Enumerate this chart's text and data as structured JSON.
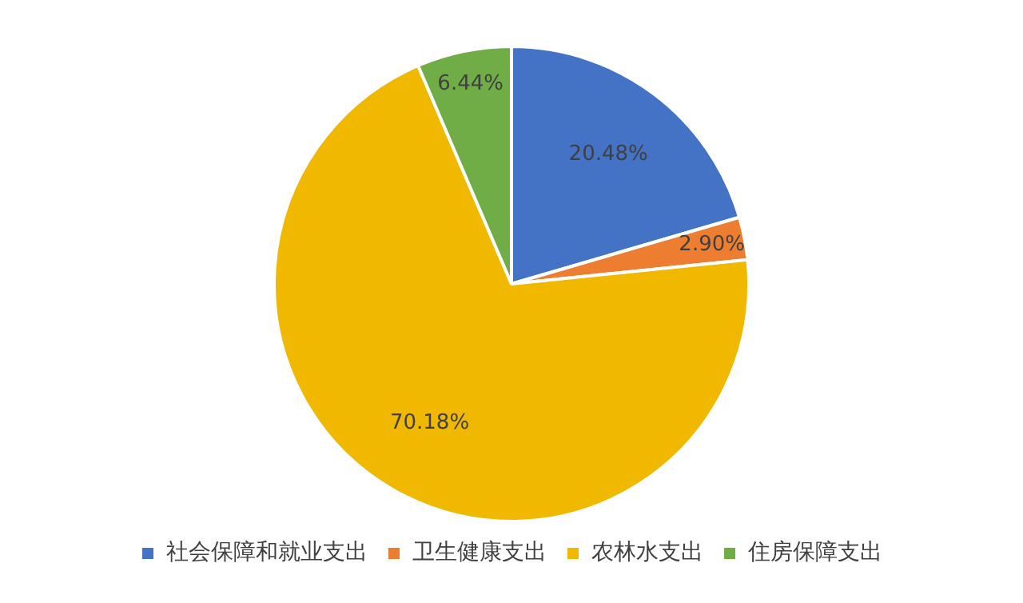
{
  "chart_data": {
    "type": "pie",
    "categories": [
      "社会保障和就业支出",
      "卫生健康支出",
      "农林水支出",
      "住房保障支出"
    ],
    "values": [
      20.48,
      2.9,
      70.18,
      6.44
    ],
    "colors": [
      "#4472c4",
      "#ed7d31",
      "#f1b800",
      "#70ad47"
    ],
    "value_labels": [
      "20.48%",
      "2.90%",
      "70.18%",
      "6.44%"
    ],
    "legend": "bottom"
  }
}
